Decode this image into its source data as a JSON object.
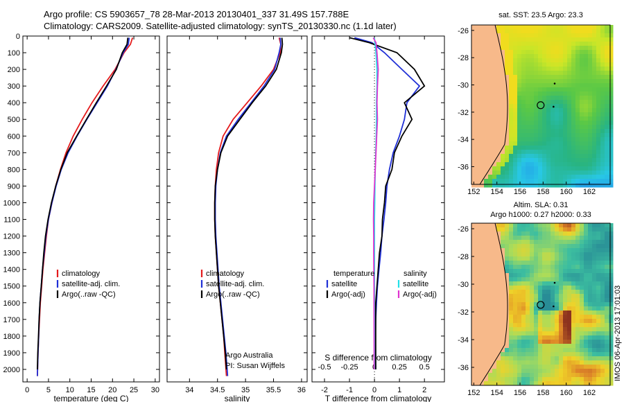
{
  "title_line1": "Argo profile: CS 5903657_78 28-Mar-2013 20130401_337 31.49S 157.788E",
  "title_line2": "Climatology: CARS2009. Satellite-adjusted climatology: synTS_20130330.nc (1.1d later)",
  "watermark": "IMOS 06-Apr-2013 17:01:03",
  "colors": {
    "climatology": "#e41a1c",
    "satellite": "#1f2fd6",
    "argo": "#000000",
    "sal_satellite": "#22e0e8",
    "sal_argo": "#e033d0",
    "land": "#f7b98a"
  },
  "chart_data": [
    {
      "type": "line",
      "id": "temperature",
      "xlabel": "temperature (deg C)",
      "xlim": [
        -1,
        31
      ],
      "ylim": [
        2075,
        0
      ],
      "xticks": [
        0,
        5,
        10,
        15,
        20,
        25,
        30
      ],
      "yticks": [
        0,
        100,
        200,
        300,
        400,
        500,
        600,
        700,
        800,
        900,
        1000,
        1100,
        1200,
        1300,
        1400,
        1500,
        1600,
        1700,
        1800,
        1900,
        2000
      ],
      "legend": [
        "climatology",
        "satellite-adj. clim.",
        "Argo(..raw -QC)"
      ],
      "series": [
        {
          "name": "climatology",
          "x": [
            24.7,
            24.2,
            22.7,
            20.6,
            17.8,
            15.2,
            12.9,
            10.8,
            9.1,
            7.8,
            6.7,
            5.8,
            5.0,
            4.5,
            4.1,
            3.7,
            3.4,
            3.1,
            2.9,
            2.7,
            2.55,
            2.4
          ],
          "y": [
            10,
            50,
            100,
            200,
            300,
            400,
            500,
            600,
            700,
            800,
            900,
            1000,
            1100,
            1200,
            1300,
            1400,
            1500,
            1600,
            1700,
            1800,
            1900,
            2040
          ]
        },
        {
          "name": "satellite-adj. clim.",
          "x": [
            23.9,
            23.7,
            22.5,
            20.8,
            18.8,
            16.4,
            14.0,
            11.7,
            9.6,
            8.0,
            6.8,
            5.8,
            5.0,
            4.4,
            4.0,
            3.6,
            3.3,
            3.0,
            2.8,
            2.7,
            2.55,
            2.4
          ],
          "y": [
            10,
            50,
            100,
            200,
            300,
            400,
            500,
            600,
            700,
            800,
            900,
            1000,
            1100,
            1200,
            1300,
            1400,
            1500,
            1600,
            1700,
            1800,
            1900,
            2040
          ]
        },
        {
          "name": "Argo(..raw -QC)",
          "x": [
            23.6,
            23.4,
            22.3,
            20.9,
            18.6,
            16.2,
            13.9,
            11.6,
            9.4,
            7.9,
            6.7,
            5.7,
            4.9,
            4.3,
            3.9,
            3.6,
            3.3,
            3.0,
            2.8,
            2.65,
            2.5,
            2.4
          ],
          "y": [
            10,
            50,
            100,
            200,
            300,
            400,
            500,
            600,
            700,
            800,
            900,
            1000,
            1100,
            1200,
            1300,
            1400,
            1500,
            1600,
            1700,
            1800,
            1900,
            2000
          ]
        }
      ]
    },
    {
      "type": "line",
      "id": "salinity",
      "xlabel": "salinity",
      "xlim": [
        33.6,
        36.1
      ],
      "ylim": [
        2075,
        0
      ],
      "xticks": [
        34,
        34.5,
        35,
        35.5,
        36
      ],
      "legend": [
        "climatology",
        "satellite-adj. clim.",
        "Argo(..raw -QC)"
      ],
      "notes": [
        "Argo Australia",
        "PI: Susan Wijffels"
      ],
      "series": [
        {
          "name": "climatology",
          "x": [
            35.6,
            35.63,
            35.62,
            35.5,
            35.28,
            35.03,
            34.78,
            34.6,
            34.52,
            34.48,
            34.46,
            34.45,
            34.45,
            34.46,
            34.48,
            34.5,
            34.52,
            34.55,
            34.58,
            34.61,
            34.63,
            34.66
          ],
          "y": [
            10,
            50,
            100,
            200,
            300,
            400,
            500,
            600,
            700,
            800,
            900,
            1000,
            1100,
            1200,
            1300,
            1400,
            1500,
            1600,
            1700,
            1800,
            1900,
            2040
          ]
        },
        {
          "name": "satellite-adj. clim.",
          "x": [
            35.62,
            35.63,
            35.6,
            35.52,
            35.33,
            35.1,
            34.87,
            34.66,
            34.55,
            34.5,
            34.47,
            34.46,
            34.46,
            34.47,
            34.49,
            34.51,
            34.53,
            34.56,
            34.59,
            34.62,
            34.65,
            34.68
          ],
          "y": [
            10,
            50,
            100,
            200,
            300,
            400,
            500,
            600,
            700,
            800,
            900,
            1000,
            1100,
            1200,
            1300,
            1400,
            1500,
            1600,
            1700,
            1800,
            1900,
            2040
          ]
        },
        {
          "name": "Argo(..raw -QC)",
          "x": [
            35.65,
            35.66,
            35.64,
            35.55,
            35.36,
            35.12,
            34.9,
            34.68,
            34.56,
            34.5,
            34.46,
            34.45,
            34.45,
            34.46,
            34.48,
            34.5,
            34.52,
            34.55,
            34.58,
            34.61,
            34.64,
            34.66
          ],
          "y": [
            10,
            50,
            100,
            200,
            300,
            400,
            500,
            600,
            700,
            800,
            900,
            1000,
            1100,
            1200,
            1300,
            1400,
            1500,
            1600,
            1700,
            1800,
            1900,
            2000
          ]
        }
      ]
    },
    {
      "type": "line",
      "id": "difference",
      "xlabel": "T difference from climatology",
      "xlabel_top": "S difference from climatology",
      "xlim": [
        -2.5,
        2.8
      ],
      "ylim": [
        2075,
        0
      ],
      "xticks": [
        -2,
        -1,
        0,
        1,
        2
      ],
      "xticks_top": [
        "-0.5",
        "-0.25",
        "0",
        "0.25",
        "0.5"
      ],
      "legend_headers": [
        "temperature",
        "salinity"
      ],
      "legend": [
        "satellite",
        "Argo(-adj)",
        "satellite",
        "Argo(-adj)"
      ],
      "series": [
        {
          "name": "satellite",
          "x": [
            -0.8,
            -0.1,
            0.4,
            1.1,
            1.8,
            1.3,
            1.2,
            1.0,
            0.75,
            0.6,
            0.5,
            0.45,
            0.38,
            0.3,
            0.25,
            0.18,
            0.12,
            0.08,
            0.05,
            0.04,
            0.05
          ],
          "y": [
            10,
            40,
            100,
            200,
            300,
            400,
            500,
            600,
            700,
            800,
            900,
            1000,
            1100,
            1200,
            1300,
            1400,
            1500,
            1600,
            1700,
            1800,
            2000
          ]
        },
        {
          "name": "Argo(-adj)",
          "x": [
            -1.0,
            -0.2,
            0.9,
            1.6,
            2.0,
            1.2,
            1.5,
            1.1,
            0.8,
            0.7,
            0.45,
            0.4,
            0.32,
            0.3,
            0.2,
            0.15,
            0.1,
            0.05,
            0.05,
            0.05,
            0.05
          ],
          "y": [
            10,
            40,
            100,
            200,
            300,
            400,
            500,
            600,
            700,
            800,
            900,
            1000,
            1100,
            1200,
            1300,
            1400,
            1500,
            1600,
            1700,
            1800,
            2000
          ]
        },
        {
          "name": "satellite",
          "x": [
            0.0,
            0.02,
            0.06,
            0.1,
            0.1,
            0.08,
            0.08,
            0.07,
            0.05,
            0.03,
            0.02,
            0.01,
            0.0,
            0.0,
            0.0,
            0.0,
            0.0
          ],
          "y": [
            10,
            40,
            100,
            200,
            300,
            400,
            500,
            600,
            700,
            800,
            900,
            1000,
            1100,
            1200,
            1300,
            1500,
            2000
          ]
        },
        {
          "name": "Argo(-adj)",
          "x": [
            -0.05,
            0.06,
            0.1,
            0.15,
            0.12,
            0.1,
            0.12,
            0.09,
            0.06,
            0.03,
            0.0,
            -0.03,
            -0.04,
            -0.03,
            -0.03,
            -0.02,
            -0.01
          ],
          "y": [
            10,
            40,
            100,
            200,
            300,
            400,
            500,
            600,
            700,
            800,
            900,
            1000,
            1100,
            1200,
            1300,
            1500,
            2000
          ]
        }
      ]
    },
    {
      "type": "heatmap",
      "id": "sst_map",
      "title": "sat. SST: 23.5  Argo: 23.3",
      "xticks": [
        152,
        154,
        156,
        158,
        160,
        162
      ],
      "yticks": [
        -26,
        -28,
        -30,
        -32,
        -34,
        -36
      ],
      "xlim": [
        151.8,
        163.8
      ],
      "ylim": [
        -37.3,
        -25.6
      ],
      "marker": {
        "lon": 157.788,
        "lat": -31.49
      }
    },
    {
      "type": "heatmap",
      "id": "sla_map",
      "title": "Altim. SLA: 0.31",
      "subtitle": "Argo h1000: 0.27 h2000: 0.33",
      "xticks": [
        152,
        154,
        156,
        158,
        160,
        162
      ],
      "yticks": [
        -26,
        -28,
        -30,
        -32,
        -34,
        -36
      ],
      "xlim": [
        151.8,
        163.8
      ],
      "ylim": [
        -37.3,
        -25.6
      ],
      "marker": {
        "lon": 157.788,
        "lat": -31.49
      }
    }
  ]
}
